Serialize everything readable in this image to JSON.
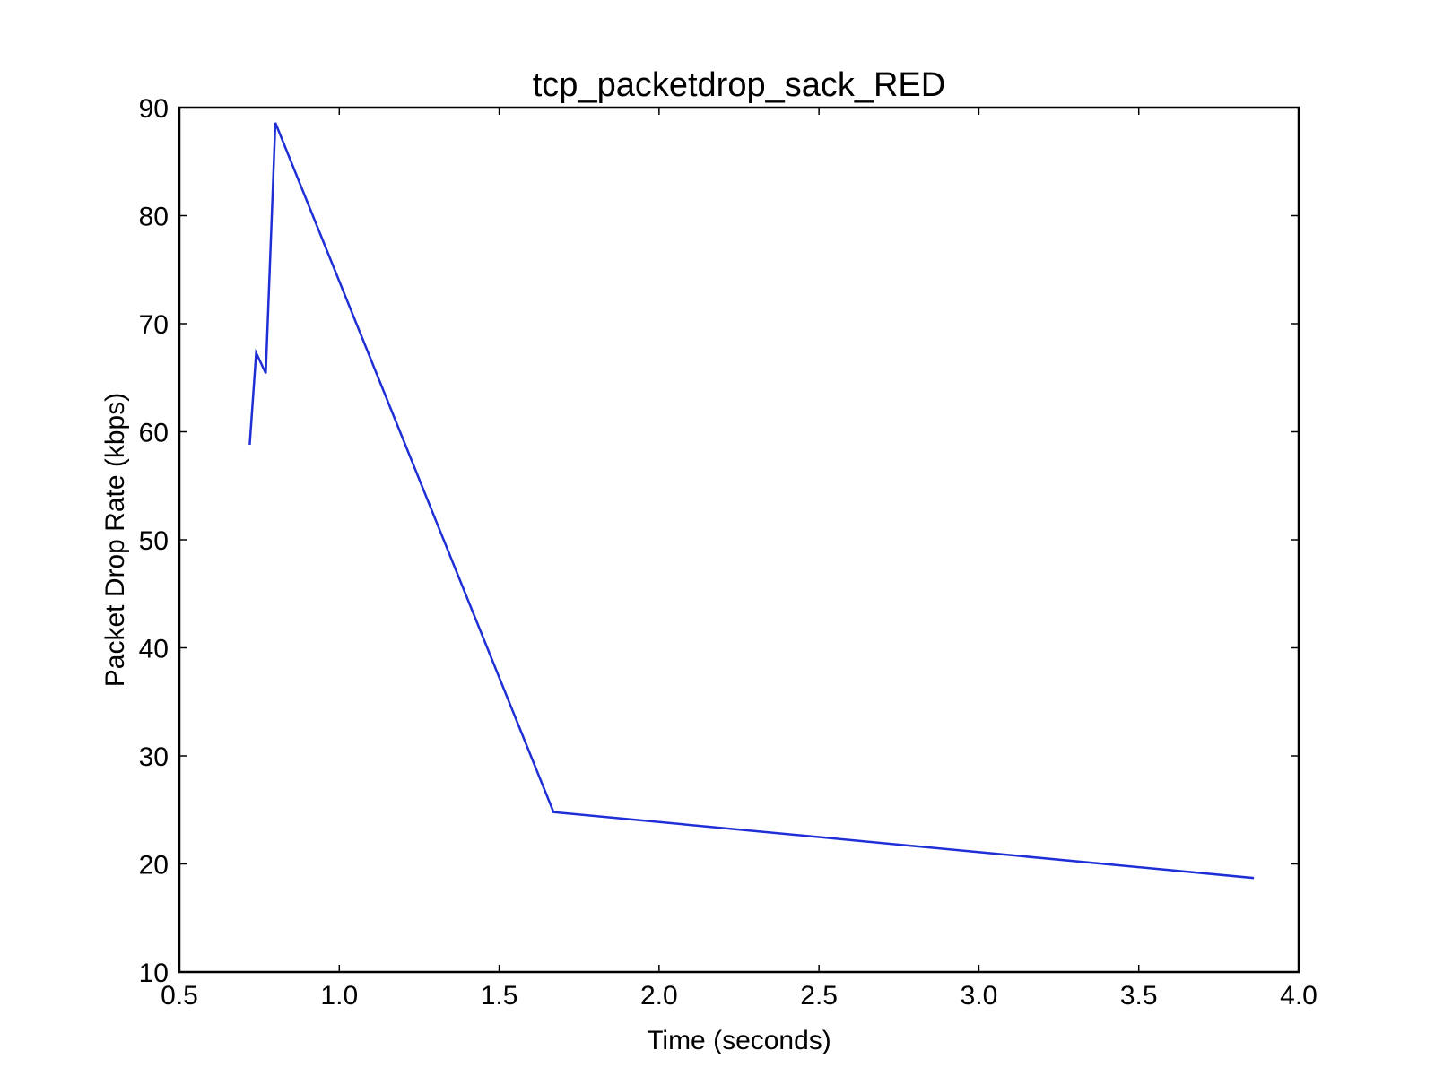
{
  "chart_data": {
    "type": "line",
    "title": "tcp_packetdrop_sack_RED",
    "xlabel": "Time (seconds)",
    "ylabel": "Packet Drop Rate (kbps)",
    "xlim": [
      0.5,
      4.0
    ],
    "ylim": [
      10,
      90
    ],
    "xticks": [
      "0.5",
      "1.0",
      "1.5",
      "2.0",
      "2.5",
      "3.0",
      "3.5",
      "4.0"
    ],
    "yticks": [
      "10",
      "20",
      "30",
      "40",
      "50",
      "60",
      "70",
      "80",
      "90"
    ],
    "grid": false,
    "series": [
      {
        "color": "#1f2fd6",
        "x": [
          0.72,
          0.74,
          0.77,
          0.8,
          1.67,
          3.86
        ],
        "y": [
          58.8,
          67.3,
          65.4,
          88.6,
          24.8,
          18.7
        ]
      }
    ]
  }
}
